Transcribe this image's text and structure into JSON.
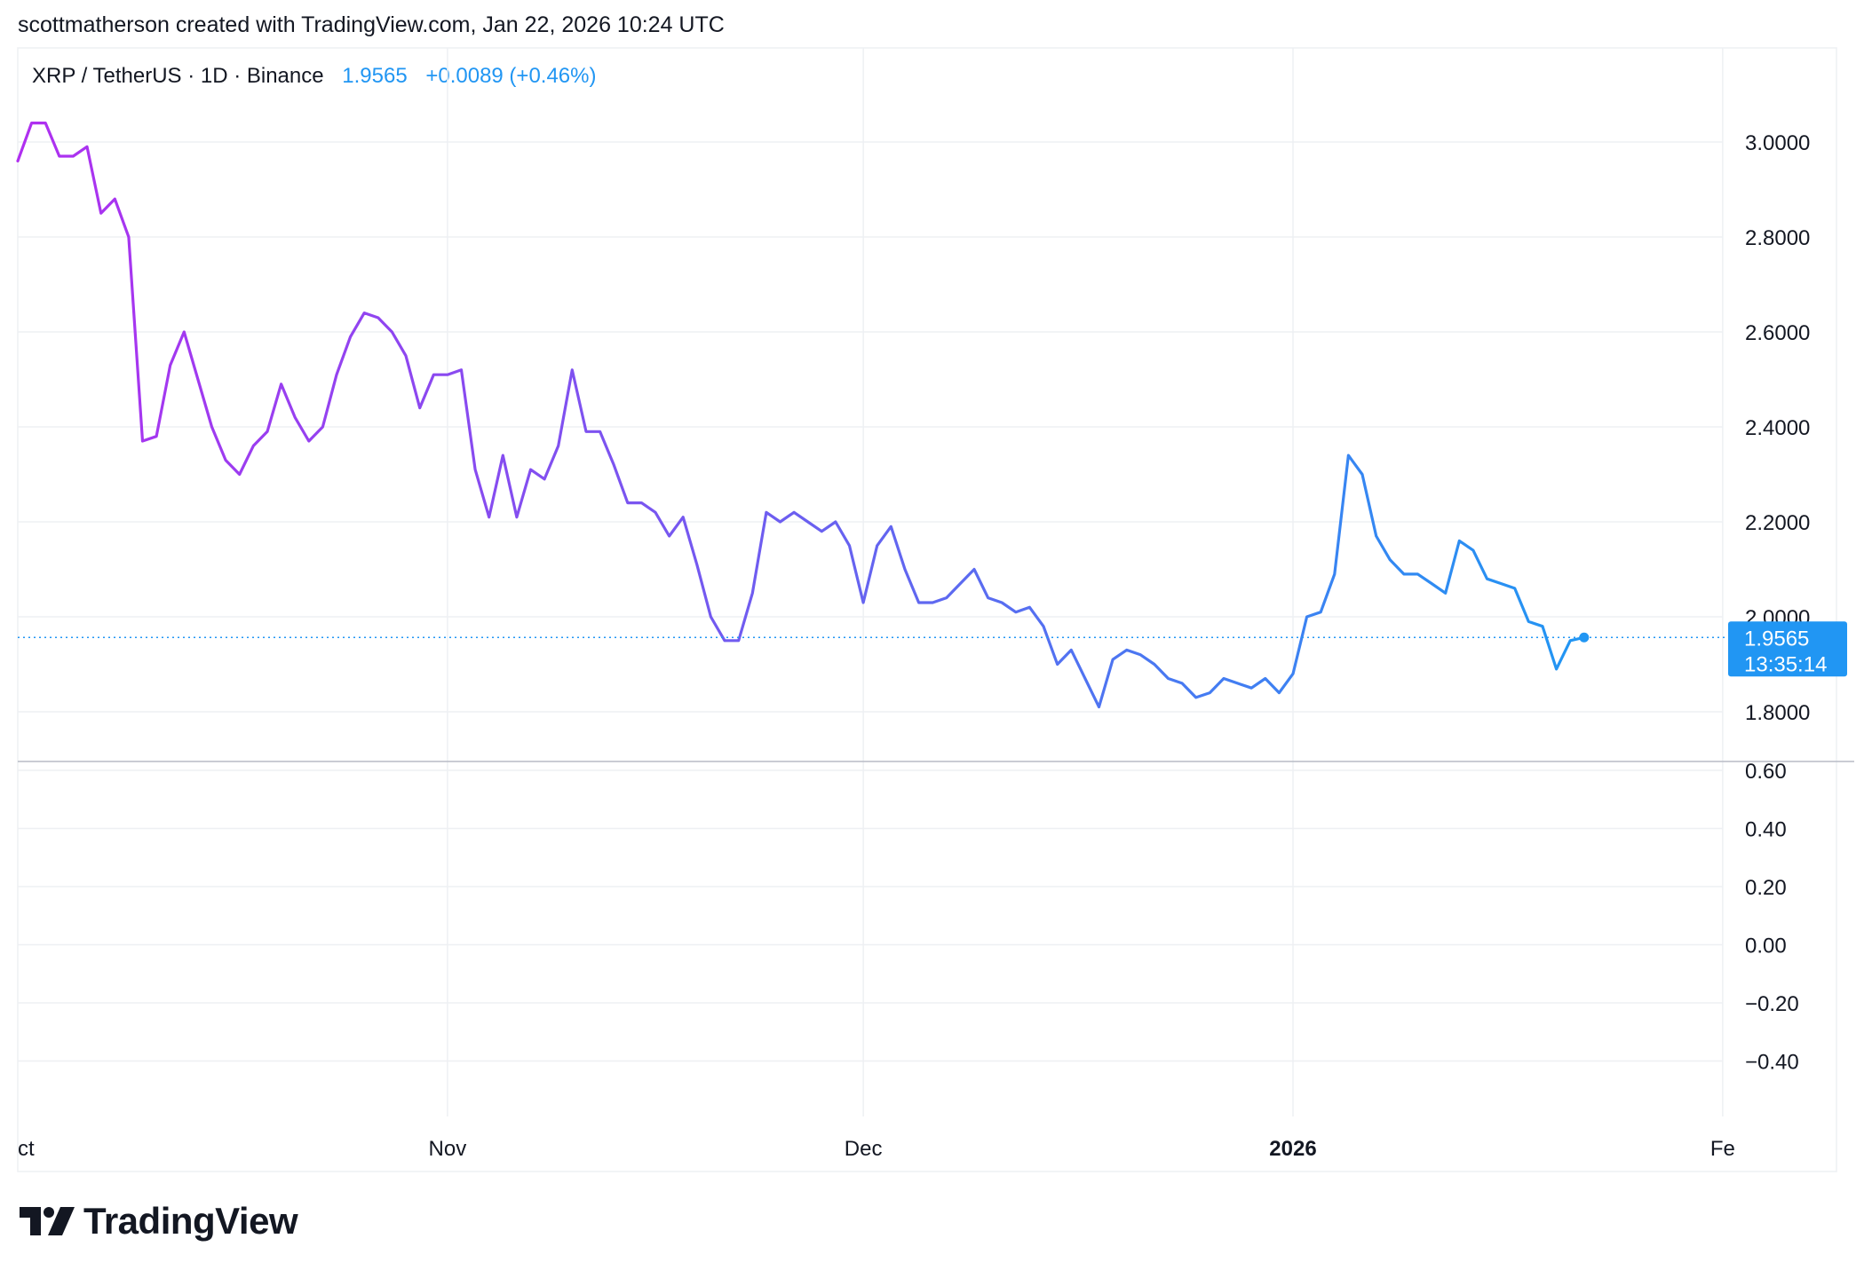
{
  "header": {
    "text": "scottmatherson created with TradingView.com, Jan 22, 2026 10:24 UTC"
  },
  "legend": {
    "symbol": "XRP / TetherUS · 1D · Binance",
    "price": "1.9565",
    "change": "+0.0089 (+0.46%)"
  },
  "price_label": {
    "value": "1.9565",
    "countdown": "13:35:14"
  },
  "footer": {
    "brand": "TradingView"
  },
  "colors": {
    "line_start": "#b02ff0",
    "line_mid": "#6b5ff0",
    "line_end": "#2196f3",
    "grid": "#eef0f3",
    "text": "#131722",
    "accent": "#2196f3"
  },
  "chart_data": {
    "type": "line",
    "title": "XRP / TetherUS · 1D · Binance",
    "x_ticks": [
      "ct",
      "Nov",
      "Dec",
      "2026",
      "Fe"
    ],
    "y_ticks_price": [
      "3.0000",
      "2.8000",
      "2.6000",
      "2.4000",
      "2.2000",
      "2.0000",
      "1.8000"
    ],
    "y_ticks_lower": [
      "0.60",
      "0.40",
      "0.20",
      "0.00",
      "−0.20",
      "−0.40"
    ],
    "ylim": [
      1.69,
      3.12
    ],
    "lower_ylim": [
      -0.6,
      0.66
    ],
    "grid": true,
    "last_price": 1.9565,
    "series": [
      {
        "x": [
          "2025-10-01",
          "2025-10-02",
          "2025-10-03",
          "2025-10-04",
          "2025-10-05",
          "2025-10-06",
          "2025-10-07",
          "2025-10-08",
          "2025-10-09",
          "2025-10-10",
          "2025-10-11",
          "2025-10-12",
          "2025-10-13",
          "2025-10-14",
          "2025-10-15",
          "2025-10-16",
          "2025-10-17",
          "2025-10-18",
          "2025-10-19",
          "2025-10-20",
          "2025-10-21",
          "2025-10-22",
          "2025-10-23",
          "2025-10-24",
          "2025-10-25",
          "2025-10-26",
          "2025-10-27",
          "2025-10-28",
          "2025-10-29",
          "2025-10-30",
          "2025-10-31",
          "2025-11-01",
          "2025-11-02",
          "2025-11-03",
          "2025-11-04",
          "2025-11-05",
          "2025-11-06",
          "2025-11-07",
          "2025-11-08",
          "2025-11-09",
          "2025-11-10",
          "2025-11-11",
          "2025-11-12",
          "2025-11-13",
          "2025-11-14",
          "2025-11-15",
          "2025-11-16",
          "2025-11-17",
          "2025-11-18",
          "2025-11-19",
          "2025-11-20",
          "2025-11-21",
          "2025-11-22",
          "2025-11-23",
          "2025-11-24",
          "2025-11-25",
          "2025-11-26",
          "2025-11-27",
          "2025-11-28",
          "2025-11-29",
          "2025-11-30",
          "2025-12-01",
          "2025-12-02",
          "2025-12-03",
          "2025-12-04",
          "2025-12-05",
          "2025-12-06",
          "2025-12-07",
          "2025-12-08",
          "2025-12-09",
          "2025-12-10",
          "2025-12-11",
          "2025-12-12",
          "2025-12-13",
          "2025-12-14",
          "2025-12-15",
          "2025-12-16",
          "2025-12-17",
          "2025-12-18",
          "2025-12-19",
          "2025-12-20",
          "2025-12-21",
          "2025-12-22",
          "2025-12-23",
          "2025-12-24",
          "2025-12-25",
          "2025-12-26",
          "2025-12-27",
          "2025-12-28",
          "2025-12-29",
          "2025-12-30",
          "2025-12-31",
          "2026-01-01",
          "2026-01-02",
          "2026-01-03",
          "2026-01-04",
          "2026-01-05",
          "2026-01-06",
          "2026-01-07",
          "2026-01-08",
          "2026-01-09",
          "2026-01-10",
          "2026-01-11",
          "2026-01-12",
          "2026-01-13",
          "2026-01-14",
          "2026-01-15",
          "2026-01-16",
          "2026-01-17",
          "2026-01-18",
          "2026-01-19",
          "2026-01-20",
          "2026-01-21",
          "2026-01-22"
        ],
        "values": [
          2.96,
          3.04,
          3.04,
          2.97,
          2.97,
          2.99,
          2.85,
          2.88,
          2.8,
          2.37,
          2.38,
          2.53,
          2.6,
          2.5,
          2.4,
          2.33,
          2.3,
          2.36,
          2.39,
          2.49,
          2.42,
          2.37,
          2.4,
          2.51,
          2.59,
          2.64,
          2.63,
          2.6,
          2.55,
          2.44,
          2.51,
          2.51,
          2.52,
          2.31,
          2.21,
          2.34,
          2.21,
          2.31,
          2.29,
          2.36,
          2.52,
          2.39,
          2.39,
          2.32,
          2.24,
          2.24,
          2.22,
          2.17,
          2.21,
          2.11,
          2.0,
          1.95,
          1.95,
          2.05,
          2.22,
          2.2,
          2.22,
          2.2,
          2.18,
          2.2,
          2.15,
          2.03,
          2.15,
          2.19,
          2.1,
          2.03,
          2.03,
          2.04,
          2.07,
          2.1,
          2.04,
          2.03,
          2.01,
          2.02,
          1.98,
          1.9,
          1.93,
          1.87,
          1.81,
          1.91,
          1.93,
          1.92,
          1.9,
          1.87,
          1.86,
          1.83,
          1.84,
          1.87,
          1.86,
          1.85,
          1.87,
          1.84,
          1.88,
          2.0,
          2.01,
          2.09,
          2.34,
          2.3,
          2.17,
          2.12,
          2.09,
          2.09,
          2.07,
          2.05,
          2.16,
          2.14,
          2.08,
          2.07,
          2.06,
          1.99,
          1.98,
          1.89,
          1.95,
          1.9565
        ]
      }
    ]
  }
}
